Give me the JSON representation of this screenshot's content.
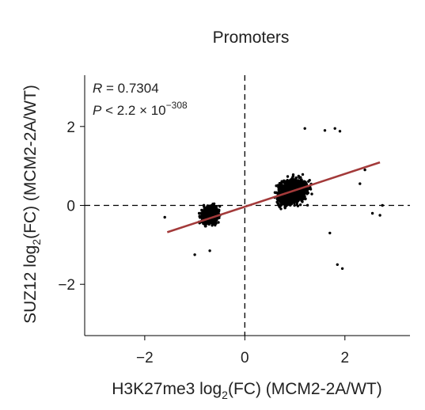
{
  "chart_data": {
    "type": "scatter",
    "title": "Promoters",
    "xlabel": "H3K27me3 log",
    "xlabel_sub": "2",
    "xlabel_rest": "(FC) (MCM2-2A/WT)",
    "ylabel": "SUZ12 log",
    "ylabel_sub": "2",
    "ylabel_rest": "(FC) (MCM2-2A/WT)",
    "xlim": [
      -3.2,
      3.3
    ],
    "ylim": [
      -3.3,
      3.3
    ],
    "xticks": [
      -2,
      0,
      2
    ],
    "xtick_labels": [
      "−2",
      "0",
      "2"
    ],
    "yticks": [
      -2,
      0,
      2
    ],
    "ytick_labels": [
      "−2",
      "0",
      "2"
    ],
    "annotation_r_label": "R",
    "annotation_r_value": " = 0.7304",
    "annotation_p_label": "P",
    "annotation_p_value": " < 2.2 × 10",
    "annotation_p_exponent": "−308",
    "reference_lines": {
      "x": 0,
      "y": 0,
      "style": "dashed"
    },
    "regression_line": {
      "x": [
        -1.55,
        2.7
      ],
      "y": [
        -0.68,
        1.09
      ],
      "color": "#a33a3a"
    },
    "point_color": "#000000",
    "clusters": [
      {
        "x_range": [
          -1.3,
          -0.3
        ],
        "y_range": [
          -1.0,
          0.5
        ]
      },
      {
        "x_range": [
          0.4,
          2.0
        ],
        "y_range": [
          -0.8,
          1.4
        ]
      }
    ],
    "outliers": [
      {
        "x": 1.2,
        "y": 1.95
      },
      {
        "x": 1.6,
        "y": 1.9
      },
      {
        "x": 1.8,
        "y": 1.95
      },
      {
        "x": 1.9,
        "y": 1.88
      },
      {
        "x": 1.85,
        "y": -1.5
      },
      {
        "x": 1.95,
        "y": -1.6
      },
      {
        "x": 2.55,
        "y": -0.2
      },
      {
        "x": 2.7,
        "y": -0.25
      },
      {
        "x": 2.75,
        "y": 0.0
      },
      {
        "x": -1.0,
        "y": -1.25
      },
      {
        "x": -1.6,
        "y": -0.3
      },
      {
        "x": -0.7,
        "y": -1.15
      },
      {
        "x": 2.3,
        "y": 0.55
      },
      {
        "x": 2.4,
        "y": 0.9
      },
      {
        "x": 1.7,
        "y": -0.7
      }
    ]
  }
}
